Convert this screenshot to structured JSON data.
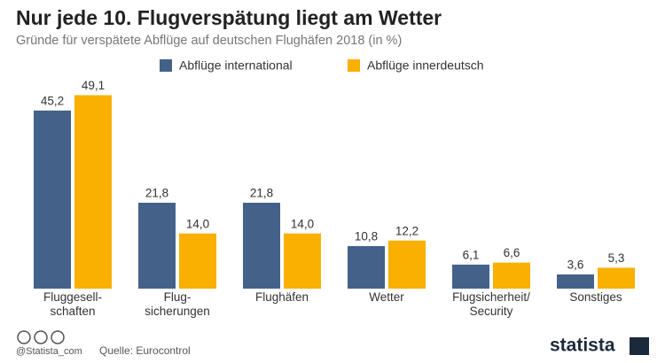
{
  "chart_data": {
    "type": "bar",
    "title": "Nur jede 10. Flugverspätung liegt am Wetter",
    "subtitle": "Gründe für verspätete Abflüge auf deutschen Flughäfen 2018 (in %)",
    "categories": [
      "Fluggesell-\nschaften",
      "Flug-\nsicherungen",
      "Flughäfen",
      "Wetter",
      "Flugsicherheit/\nSecurity",
      "Sonstiges"
    ],
    "series": [
      {
        "name": "Abflüge international",
        "color": "#44618a",
        "values": [
          45.2,
          21.8,
          21.8,
          10.8,
          6.1,
          3.6
        ],
        "value_labels": [
          "45,2",
          "21,8",
          "21,8",
          "10,8",
          "6,1",
          "3,6"
        ]
      },
      {
        "name": "Abflüge innerdeutsch",
        "color": "#f9b000",
        "values": [
          49.1,
          14.0,
          14.0,
          12.2,
          6.6,
          5.3
        ],
        "value_labels": [
          "49,1",
          "14,0",
          "14,0",
          "12,2",
          "6,6",
          "5,3"
        ]
      }
    ]
  },
  "footer": {
    "handle": "@Statista_com",
    "source": "Quelle: Eurocontrol",
    "brand": "statista"
  }
}
